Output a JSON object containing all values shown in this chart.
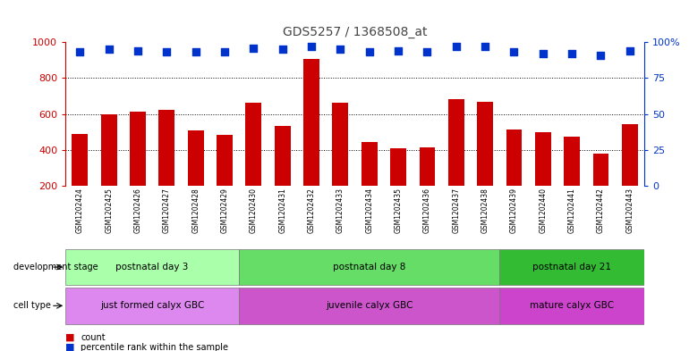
{
  "title": "GDS5257 / 1368508_at",
  "samples": [
    "GSM1202424",
    "GSM1202425",
    "GSM1202426",
    "GSM1202427",
    "GSM1202428",
    "GSM1202429",
    "GSM1202430",
    "GSM1202431",
    "GSM1202432",
    "GSM1202433",
    "GSM1202434",
    "GSM1202435",
    "GSM1202436",
    "GSM1202437",
    "GSM1202438",
    "GSM1202439",
    "GSM1202440",
    "GSM1202441",
    "GSM1202442",
    "GSM1202443"
  ],
  "counts": [
    490,
    600,
    615,
    625,
    510,
    485,
    665,
    535,
    905,
    665,
    445,
    410,
    415,
    685,
    670,
    515,
    500,
    475,
    380,
    545
  ],
  "percentiles": [
    93,
    95,
    94,
    93,
    93,
    93,
    96,
    95,
    97,
    95,
    93,
    94,
    93,
    97,
    97,
    93,
    92,
    92,
    91,
    94
  ],
  "bar_color": "#cc0000",
  "dot_color": "#0033cc",
  "ylim_left": [
    200,
    1000
  ],
  "ylim_right": [
    0,
    100
  ],
  "yticks_left": [
    200,
    400,
    600,
    800,
    1000
  ],
  "yticks_right": [
    0,
    25,
    50,
    75,
    100
  ],
  "yticklabels_right": [
    "0",
    "25",
    "50",
    "75",
    "100%"
  ],
  "grid_values": [
    400,
    600,
    800
  ],
  "groups": [
    {
      "label": "postnatal day 3",
      "start": 0,
      "end": 5,
      "color": "#aaffaa"
    },
    {
      "label": "postnatal day 8",
      "start": 6,
      "end": 14,
      "color": "#66dd66"
    },
    {
      "label": "postnatal day 21",
      "start": 15,
      "end": 19,
      "color": "#33bb33"
    }
  ],
  "cell_types": [
    {
      "label": "just formed calyx GBC",
      "start": 0,
      "end": 5,
      "color": "#dd88ee"
    },
    {
      "label": "juvenile calyx GBC",
      "start": 6,
      "end": 14,
      "color": "#cc55cc"
    },
    {
      "label": "mature calyx GBC",
      "start": 15,
      "end": 19,
      "color": "#cc44cc"
    }
  ],
  "row_label_dev": "development stage",
  "row_label_cell": "cell type",
  "legend_count": "count",
  "legend_pct": "percentile rank within the sample",
  "left_axis_color": "#cc0000",
  "right_axis_color": "#0033cc",
  "bar_width": 0.55,
  "dot_size": 38,
  "background_color": "#ffffff",
  "names_bg_color": "#c8c8c8",
  "title_color": "#444444"
}
